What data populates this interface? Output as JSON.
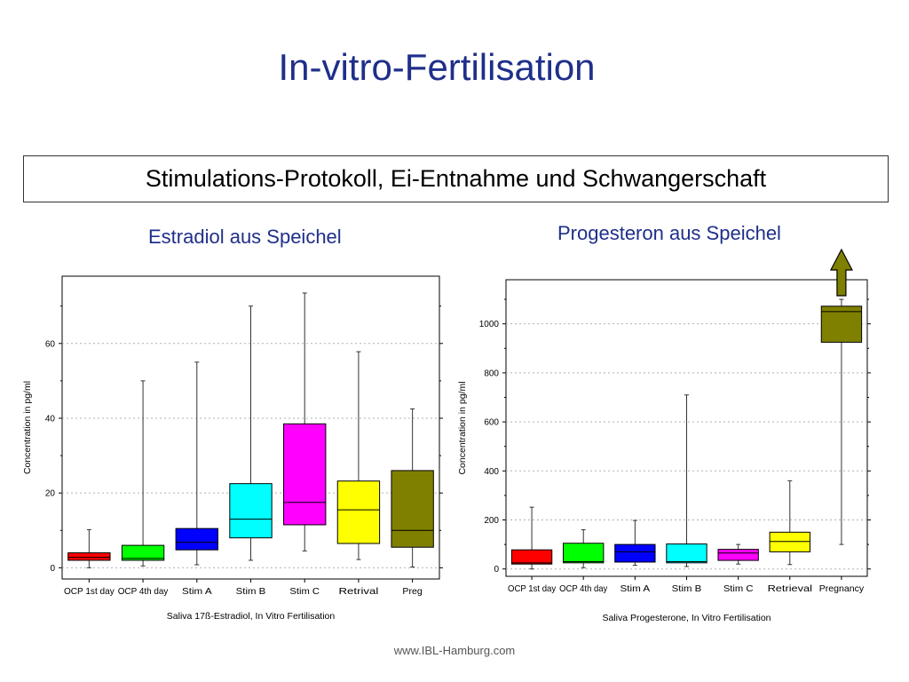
{
  "slide": {
    "title": "In-vitro-Fertilisation",
    "subtitle": "Stimulations-Protokoll, Ei-Entnahme und Schwangerschaft",
    "footer": "www.IBL-Hamburg.com"
  },
  "panels": {
    "left_title": "Estradiol aus Speichel",
    "right_title": "Progesteron aus Speichel"
  },
  "chart_data": [
    {
      "type": "box",
      "title": "Estradiol aus Speichel",
      "xlabel": "Saliva 17ß-Estradiol, In Vitro Fertilisation",
      "ylabel": "Concentration in pg/ml",
      "ylim": [
        -3,
        78
      ],
      "yticks": [
        0,
        20,
        40,
        60
      ],
      "grid": true,
      "categories": [
        "OCP 1st day",
        "OCP 4th day",
        "Stim A",
        "Stim B",
        "Stim C",
        "Retrival",
        "Preg"
      ],
      "boxes": [
        {
          "min": 0,
          "q1": 2,
          "median": 2.8,
          "q3": 4,
          "max": 10.2,
          "color": "#ff0000"
        },
        {
          "min": 0.5,
          "q1": 2,
          "median": 2.5,
          "q3": 6,
          "max": 50,
          "color": "#00ff00"
        },
        {
          "min": 0.8,
          "q1": 4.8,
          "median": 6.8,
          "q3": 10.5,
          "max": 55,
          "color": "#0000ff"
        },
        {
          "min": 2,
          "q1": 8,
          "median": 13,
          "q3": 22.5,
          "max": 70,
          "color": "#00ffff"
        },
        {
          "min": 4.5,
          "q1": 11.5,
          "median": 17.5,
          "q3": 38.5,
          "max": 73.5,
          "color": "#ff00ff"
        },
        {
          "min": 2.2,
          "q1": 6.5,
          "median": 15.5,
          "q3": 23.2,
          "max": 57.8,
          "color": "#ffff00"
        },
        {
          "min": 0.2,
          "q1": 5.5,
          "median": 10,
          "q3": 26,
          "max": 42.5,
          "color": "#808000"
        }
      ]
    },
    {
      "type": "box",
      "title": "Progesteron aus Speichel",
      "xlabel": "Saliva Progesterone, In Vitro Fertilisation",
      "ylabel": "Concentration in pg/ml",
      "ylim": [
        -30,
        1180
      ],
      "yticks": [
        0,
        200,
        400,
        600,
        800,
        1000
      ],
      "grid": true,
      "categories": [
        "OCP 1st day",
        "OCP 4th day",
        "Stim A",
        "Stim B",
        "Stim C",
        "Retrieval",
        "Pregnancy"
      ],
      "boxes": [
        {
          "min": 0,
          "q1": 20,
          "median": 25,
          "q3": 78,
          "max": 252,
          "color": "#ff0000"
        },
        {
          "min": 5,
          "q1": 25,
          "median": 30,
          "q3": 105,
          "max": 160,
          "color": "#00ff00"
        },
        {
          "min": 15,
          "q1": 28,
          "median": 70,
          "q3": 100,
          "max": 198,
          "color": "#0000ff"
        },
        {
          "min": 10,
          "q1": 25,
          "median": 30,
          "q3": 102,
          "max": 710,
          "color": "#00ffff"
        },
        {
          "min": 20,
          "q1": 35,
          "median": 65,
          "q3": 80,
          "max": 100,
          "color": "#ff00ff"
        },
        {
          "min": 18,
          "q1": 70,
          "median": 112,
          "q3": 150,
          "max": 360,
          "color": "#ffff00"
        },
        {
          "min": 100,
          "q1": 925,
          "median": 1050,
          "q3": 1072,
          "max": 1100,
          "color": "#808000"
        }
      ],
      "annotation": "arrow-up above Pregnancy (values exceed axis)"
    }
  ]
}
